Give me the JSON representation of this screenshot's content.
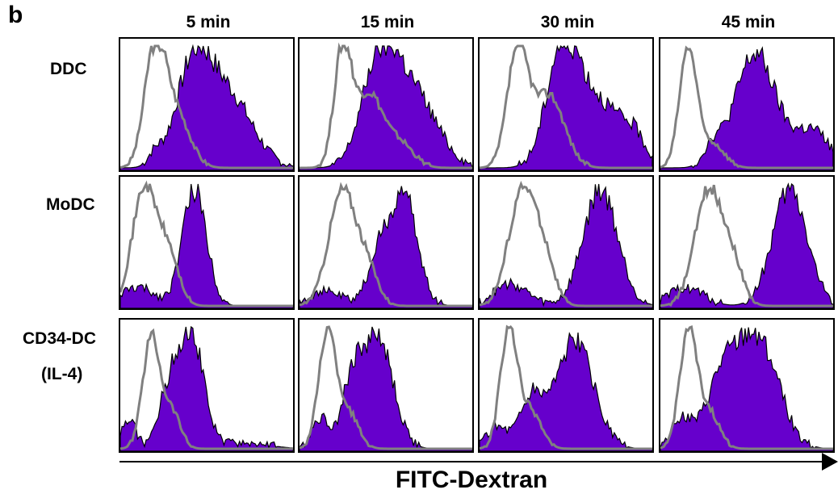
{
  "panel_label": "b",
  "columns": [
    "5 min",
    "15 min",
    "30 min",
    "45 min"
  ],
  "rows": [
    {
      "label_lines": [
        "DDC"
      ]
    },
    {
      "label_lines": [
        "MoDC"
      ]
    },
    {
      "label_lines": [
        "CD34-DC",
        "(IL-4)"
      ]
    }
  ],
  "xlabel": "FITC-Dextran",
  "colors": {
    "sample_fill": "#6600cc",
    "sample_line": "#000000",
    "control_line": "#808080"
  },
  "chart_data": {
    "type": "area",
    "x_range": [
      0,
      100
    ],
    "y_range": [
      0,
      1
    ],
    "panels": [
      {
        "row": "DDC",
        "col": "5 min",
        "sample": {
          "peaks": [
            [
              42,
              0.75,
              10
            ],
            [
              62,
              0.6,
              14
            ],
            [
              20,
              0.1,
              4
            ]
          ]
        },
        "control": {
          "peaks": [
            [
              20,
              0.95,
              6
            ],
            [
              32,
              0.45,
              8
            ]
          ]
        }
      },
      {
        "row": "DDC",
        "col": "15 min",
        "sample": {
          "peaks": [
            [
              46,
              0.78,
              10
            ],
            [
              65,
              0.62,
              14
            ]
          ]
        },
        "control": {
          "peaks": [
            [
              25,
              0.95,
              5
            ],
            [
              40,
              0.6,
              8
            ],
            [
              58,
              0.2,
              8
            ]
          ]
        }
      },
      {
        "row": "DDC",
        "col": "30 min",
        "sample": {
          "peaks": [
            [
              48,
              0.88,
              9
            ],
            [
              68,
              0.55,
              15
            ],
            [
              90,
              0.15,
              6
            ]
          ]
        },
        "control": {
          "peaks": [
            [
              22,
              0.95,
              6
            ],
            [
              40,
              0.6,
              9
            ]
          ]
        }
      },
      {
        "row": "DDC",
        "col": "45 min",
        "sample": {
          "peaks": [
            [
              55,
              0.93,
              12
            ],
            [
              88,
              0.3,
              10
            ],
            [
              30,
              0.15,
              5
            ]
          ]
        },
        "control": {
          "peaks": [
            [
              16,
              0.97,
              5
            ],
            [
              30,
              0.2,
              7
            ]
          ]
        }
      },
      {
        "row": "MoDC",
        "col": "5 min",
        "sample": {
          "peaks": [
            [
              43,
              0.96,
              7
            ],
            [
              10,
              0.15,
              10
            ]
          ]
        },
        "control": {
          "peaks": [
            [
              14,
              0.97,
              7
            ],
            [
              28,
              0.4,
              6
            ]
          ]
        }
      },
      {
        "row": "MoDC",
        "col": "15 min",
        "sample": {
          "peaks": [
            [
              60,
              0.92,
              8
            ],
            [
              45,
              0.35,
              6
            ],
            [
              15,
              0.12,
              10
            ]
          ]
        },
        "control": {
          "peaks": [
            [
              25,
              0.95,
              8
            ],
            [
              40,
              0.25,
              6
            ]
          ]
        }
      },
      {
        "row": "MoDC",
        "col": "30 min",
        "sample": {
          "peaks": [
            [
              70,
              0.95,
              10
            ],
            [
              18,
              0.18,
              10
            ]
          ]
        },
        "control": {
          "peaks": [
            [
              25,
              0.95,
              8
            ],
            [
              38,
              0.3,
              6
            ]
          ]
        }
      },
      {
        "row": "MoDC",
        "col": "45 min",
        "sample": {
          "peaks": [
            [
              75,
              0.95,
              10
            ],
            [
              15,
              0.15,
              10
            ]
          ]
        },
        "control": {
          "peaks": [
            [
              28,
              0.95,
              8
            ],
            [
              42,
              0.3,
              6
            ]
          ]
        }
      },
      {
        "row": "CD34-DC (IL-4)",
        "col": "5 min",
        "sample": {
          "peaks": [
            [
              41,
              0.95,
              7
            ],
            [
              28,
              0.45,
              6
            ],
            [
              5,
              0.25,
              4
            ],
            [
              70,
              0.05,
              15
            ]
          ]
        },
        "control": {
          "peaks": [
            [
              18,
              0.92,
              5
            ],
            [
              30,
              0.3,
              5
            ]
          ]
        }
      },
      {
        "row": "CD34-DC (IL-4)",
        "col": "15 min",
        "sample": {
          "peaks": [
            [
              45,
              0.92,
              9
            ],
            [
              30,
              0.45,
              6
            ],
            [
              12,
              0.25,
              5
            ]
          ]
        },
        "control": {
          "peaks": [
            [
              16,
              0.95,
              5
            ],
            [
              28,
              0.3,
              6
            ]
          ]
        }
      },
      {
        "row": "CD34-DC (IL-4)",
        "col": "30 min",
        "sample": {
          "peaks": [
            [
              55,
              0.88,
              11
            ],
            [
              30,
              0.4,
              7
            ],
            [
              10,
              0.18,
              6
            ]
          ]
        },
        "control": {
          "peaks": [
            [
              17,
              0.97,
              5
            ],
            [
              30,
              0.3,
              6
            ]
          ]
        }
      },
      {
        "row": "CD34-DC (IL-4)",
        "col": "45 min",
        "sample": {
          "peaks": [
            [
              56,
              0.92,
              12
            ],
            [
              35,
              0.5,
              9
            ],
            [
              12,
              0.25,
              6
            ]
          ]
        },
        "control": {
          "peaks": [
            [
              16,
              0.95,
              5
            ],
            [
              28,
              0.3,
              6
            ]
          ]
        }
      }
    ]
  }
}
